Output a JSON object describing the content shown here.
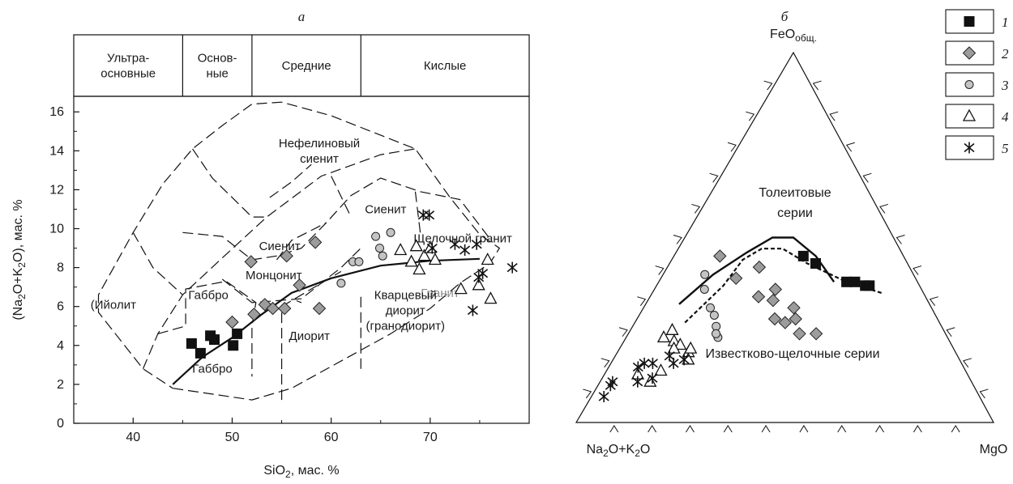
{
  "chart_data": [
    {
      "panel": "а",
      "type": "scatter",
      "xlabel": [
        "SiO",
        "2",
        ", мас. %"
      ],
      "ylabel": [
        "(Na",
        "2",
        "O+K",
        "2",
        "O), мас. %"
      ],
      "xlim": [
        34,
        80
      ],
      "ylim": [
        0,
        16.8
      ],
      "xticks": [
        "40",
        "50",
        "60",
        "70"
      ],
      "yticks": [
        "0",
        "2",
        "4",
        "6",
        "8",
        "10",
        "12",
        "14",
        "16"
      ],
      "header_groups": [
        {
          "lines": [
            "Ультра-",
            "основные"
          ]
        },
        {
          "lines": [
            "Основ-",
            "ные"
          ]
        },
        {
          "lines": [
            "Средние"
          ]
        },
        {
          "lines": [
            "Кислые"
          ]
        }
      ],
      "field_labels": [
        {
          "lines": [
            "Нефелиновый",
            "сиенит"
          ],
          "x": 58.8,
          "y": 14.0
        },
        {
          "lines": [
            "Сиенит"
          ],
          "x": 65.5,
          "y": 11.0
        },
        {
          "lines": [
            "Сиенит"
          ],
          "x": 54.8,
          "y": 9.1
        },
        {
          "lines": [
            "Щелочной гранит"
          ],
          "x": 73.3,
          "y": 9.5
        },
        {
          "lines": [
            "Монцонит"
          ],
          "x": 54.2,
          "y": 7.6
        },
        {
          "lines": [
            "Гранит"
          ],
          "x": 71.0,
          "y": 6.7,
          "gray": true
        },
        {
          "lines": [
            "Габбро"
          ],
          "x": 47.6,
          "y": 6.6
        },
        {
          "lines": [
            "Кварцевый",
            "диорит",
            "(гранодиорит)"
          ],
          "x": 67.5,
          "y": 5.8
        },
        {
          "lines": [
            "(Ийолит"
          ],
          "x": 38.0,
          "y": 6.1
        },
        {
          "lines": [
            "Диорит"
          ],
          "x": 57.8,
          "y": 4.5
        },
        {
          "lines": [
            "Габбро"
          ],
          "x": 48.0,
          "y": 2.8
        }
      ],
      "series": [
        {
          "marker": "square",
          "points": [
            [
              45.9,
              4.1
            ],
            [
              46.8,
              3.6
            ],
            [
              47.8,
              4.5
            ],
            [
              48.2,
              4.3
            ],
            [
              50.1,
              4.0
            ],
            [
              50.5,
              4.6
            ]
          ]
        },
        {
          "marker": "diamond",
          "points": [
            [
              50.0,
              5.2
            ],
            [
              51.9,
              8.3
            ],
            [
              52.2,
              5.6
            ],
            [
              53.3,
              6.1
            ],
            [
              54.1,
              5.9
            ],
            [
              55.3,
              5.9
            ],
            [
              55.5,
              8.6
            ],
            [
              56.8,
              7.1
            ],
            [
              58.4,
              9.3
            ],
            [
              58.8,
              5.9
            ]
          ]
        },
        {
          "marker": "circle",
          "points": [
            [
              61.0,
              7.2
            ],
            [
              62.2,
              8.3
            ],
            [
              62.8,
              8.3
            ],
            [
              64.5,
              9.6
            ],
            [
              64.9,
              9.0
            ],
            [
              65.2,
              8.6
            ],
            [
              66.0,
              9.8
            ]
          ]
        },
        {
          "marker": "triangle",
          "points": [
            [
              67.0,
              8.9
            ],
            [
              68.1,
              8.3
            ],
            [
              68.6,
              9.1
            ],
            [
              68.9,
              7.9
            ],
            [
              69.4,
              8.6
            ],
            [
              70.0,
              9.0
            ],
            [
              70.5,
              8.4
            ],
            [
              73.1,
              6.9
            ],
            [
              74.9,
              7.1
            ],
            [
              75.8,
              8.4
            ],
            [
              76.1,
              6.4
            ]
          ]
        },
        {
          "marker": "asterisk",
          "points": [
            [
              69.3,
              10.7
            ],
            [
              69.9,
              10.7
            ],
            [
              70.2,
              9.0
            ],
            [
              72.5,
              9.2
            ],
            [
              73.5,
              8.9
            ],
            [
              74.7,
              9.2
            ],
            [
              74.3,
              5.8
            ],
            [
              74.9,
              7.5
            ],
            [
              75.3,
              7.7
            ],
            [
              78.3,
              8.0
            ]
          ]
        }
      ],
      "alkaline_boundary": [
        [
          44.0,
          2.0
        ],
        [
          47.0,
          3.4
        ],
        [
          50.0,
          4.4
        ],
        [
          53.0,
          5.6
        ],
        [
          56.0,
          6.7
        ],
        [
          60.0,
          7.45
        ],
        [
          65.0,
          8.1
        ],
        [
          70.0,
          8.35
        ],
        [
          75.0,
          8.45
        ]
      ]
    },
    {
      "panel": "б",
      "type": "ternary",
      "apex_top": [
        "FeO",
        "общ."
      ],
      "apex_left": [
        "Na",
        "2",
        "O+K",
        "2",
        "O"
      ],
      "apex_right": [
        "MgO"
      ],
      "region_labels": [
        {
          "lines": [
            "Толеитовые",
            "серии"
          ]
        },
        {
          "lines": [
            "Известково-щелочные серии"
          ]
        }
      ],
      "series": [
        {
          "marker": "square",
          "points": [
            [
              0.24,
              0.45,
              0.31
            ],
            [
              0.22,
              0.43,
              0.35
            ],
            [
              0.17,
              0.38,
              0.45
            ],
            [
              0.15,
              0.38,
              0.47
            ],
            [
              0.13,
              0.37,
              0.5
            ],
            [
              0.12,
              0.37,
              0.51
            ]
          ]
        },
        {
          "marker": "diamond",
          "points": [
            [
              0.44,
              0.45,
              0.11
            ],
            [
              0.36,
              0.42,
              0.22
            ],
            [
              0.35,
              0.36,
              0.29
            ],
            [
              0.37,
              0.33,
              0.3
            ],
            [
              0.39,
              0.28,
              0.33
            ],
            [
              0.37,
              0.27,
              0.36
            ],
            [
              0.34,
              0.28,
              0.38
            ],
            [
              0.33,
              0.31,
              0.36
            ],
            [
              0.43,
              0.39,
              0.18
            ],
            [
              0.4,
              0.34,
              0.26
            ],
            [
              0.35,
              0.24,
              0.41
            ],
            [
              0.31,
              0.24,
              0.45
            ]
          ]
        },
        {
          "marker": "circle",
          "points": [
            [
              0.5,
              0.4,
              0.1
            ],
            [
              0.52,
              0.36,
              0.12
            ],
            [
              0.53,
              0.31,
              0.16
            ],
            [
              0.53,
              0.29,
              0.18
            ],
            [
              0.54,
              0.26,
              0.2
            ],
            [
              0.55,
              0.23,
              0.22
            ],
            [
              0.55,
              0.24,
              0.21
            ]
          ]
        },
        {
          "marker": "triangle",
          "points": [
            [
              0.68,
              0.23,
              0.09
            ],
            [
              0.65,
              0.25,
              0.1
            ],
            [
              0.66,
              0.22,
              0.12
            ],
            [
              0.65,
              0.21,
              0.14
            ],
            [
              0.67,
              0.2,
              0.13
            ],
            [
              0.64,
              0.19,
              0.17
            ],
            [
              0.63,
              0.2,
              0.17
            ],
            [
              0.65,
              0.17,
              0.18
            ],
            [
              0.79,
              0.13,
              0.08
            ],
            [
              0.77,
              0.11,
              0.12
            ],
            [
              0.73,
              0.14,
              0.13
            ]
          ]
        },
        {
          "marker": "asterisk",
          "points": [
            [
              0.9,
              0.07,
              0.03
            ],
            [
              0.87,
              0.1,
              0.03
            ],
            [
              0.86,
              0.11,
              0.03
            ],
            [
              0.78,
              0.15,
              0.07
            ],
            [
              0.76,
              0.16,
              0.08
            ],
            [
              0.74,
              0.16,
              0.1
            ],
            [
              0.8,
              0.11,
              0.09
            ],
            [
              0.76,
              0.12,
              0.12
            ],
            [
              0.69,
              0.18,
              0.13
            ],
            [
              0.69,
              0.16,
              0.15
            ],
            [
              0.66,
              0.17,
              0.17
            ]
          ]
        }
      ],
      "solid_boundary": [
        [
          0.6,
          0.32,
          0.08
        ],
        [
          0.48,
          0.4,
          0.12
        ],
        [
          0.37,
          0.46,
          0.17
        ],
        [
          0.29,
          0.5,
          0.21
        ],
        [
          0.24,
          0.5,
          0.26
        ],
        [
          0.21,
          0.45,
          0.34
        ],
        [
          0.2,
          0.38,
          0.42
        ]
      ],
      "dashed_boundary": [
        [
          0.61,
          0.27,
          0.12
        ],
        [
          0.47,
          0.37,
          0.16
        ],
        [
          0.39,
          0.44,
          0.17
        ],
        [
          0.33,
          0.47,
          0.2
        ],
        [
          0.28,
          0.47,
          0.25
        ],
        [
          0.24,
          0.43,
          0.33
        ],
        [
          0.17,
          0.38,
          0.45
        ],
        [
          0.1,
          0.35,
          0.55
        ]
      ]
    }
  ],
  "legend": [
    {
      "marker": "square",
      "label": "1"
    },
    {
      "marker": "diamond",
      "label": "2"
    },
    {
      "marker": "circle",
      "label": "3"
    },
    {
      "marker": "triangle",
      "label": "4"
    },
    {
      "marker": "asterisk",
      "label": "5"
    }
  ]
}
